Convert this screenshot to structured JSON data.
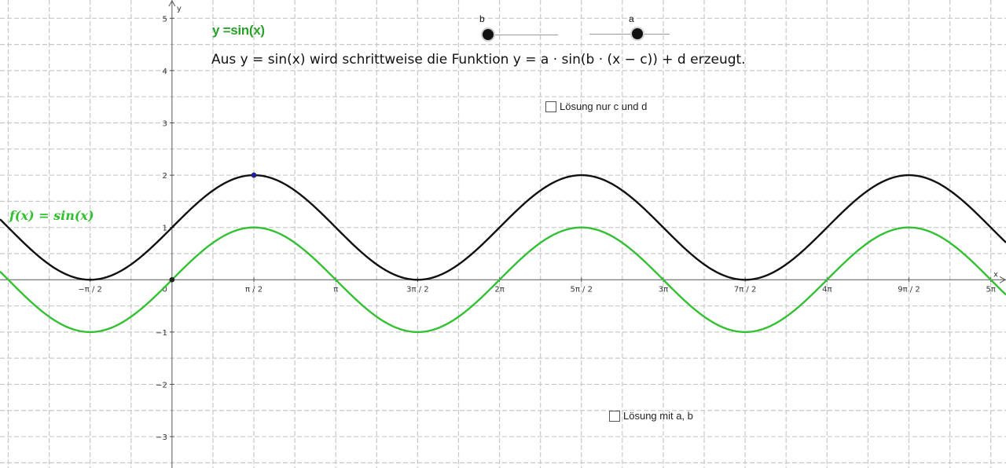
{
  "title": "y =sin(x)",
  "description": "Aus y = sin(x) wird schrittweise die Funktion y = a · sin(b · (x − c)) + d erzeugt.",
  "function_label": "f(x) = sin(x)",
  "sliders": [
    {
      "name": "b",
      "label": "b"
    },
    {
      "name": "a",
      "label": "a"
    }
  ],
  "checkboxes": [
    {
      "label": "Lösung nur c und d",
      "checked": false
    },
    {
      "label": "Lösung mit a, b",
      "checked": false
    }
  ],
  "colors": {
    "green_curve": "#33c033",
    "black_curve": "#111111",
    "grid": "#c8c8c8",
    "title_green": "#2aa12a",
    "point_blue": "#1a1acc"
  },
  "chart_data": {
    "type": "line",
    "xlabel": "x",
    "ylabel": "y",
    "xlim": [
      -3.3,
      16.0
    ],
    "ylim": [
      -3.6,
      5.35
    ],
    "grid": true,
    "x_ticks": [
      {
        "value": -1.5708,
        "label": "−π / 2"
      },
      {
        "value": 1.5708,
        "label": "π / 2"
      },
      {
        "value": 3.1416,
        "label": "π"
      },
      {
        "value": 4.7124,
        "label": "3π / 2"
      },
      {
        "value": 6.2832,
        "label": "2π"
      },
      {
        "value": 7.854,
        "label": "5π / 2"
      },
      {
        "value": 9.4248,
        "label": "3π"
      },
      {
        "value": 10.9956,
        "label": "7π / 2"
      },
      {
        "value": 12.5664,
        "label": "4π"
      },
      {
        "value": 14.1372,
        "label": "9π / 2"
      },
      {
        "value": 15.708,
        "label": "5π"
      }
    ],
    "y_ticks": [
      {
        "value": -3,
        "label": "−3"
      },
      {
        "value": -2,
        "label": "−2"
      },
      {
        "value": -1,
        "label": "−1"
      },
      {
        "value": 1,
        "label": "1"
      },
      {
        "value": 2,
        "label": "2"
      },
      {
        "value": 3,
        "label": "3"
      },
      {
        "value": 4,
        "label": "4"
      },
      {
        "value": 5,
        "label": "5"
      }
    ],
    "origin_label": "0",
    "series": [
      {
        "name": "f(x) = sin(x)",
        "formula": "sin(x)",
        "color": "#33c033"
      },
      {
        "formula": "sin(x) + 1",
        "color": "#111111"
      }
    ],
    "points": [
      {
        "x": 0,
        "y": 0,
        "color": "#222222"
      },
      {
        "x": 1.5708,
        "y": 2,
        "color": "#1a1acc"
      }
    ]
  }
}
